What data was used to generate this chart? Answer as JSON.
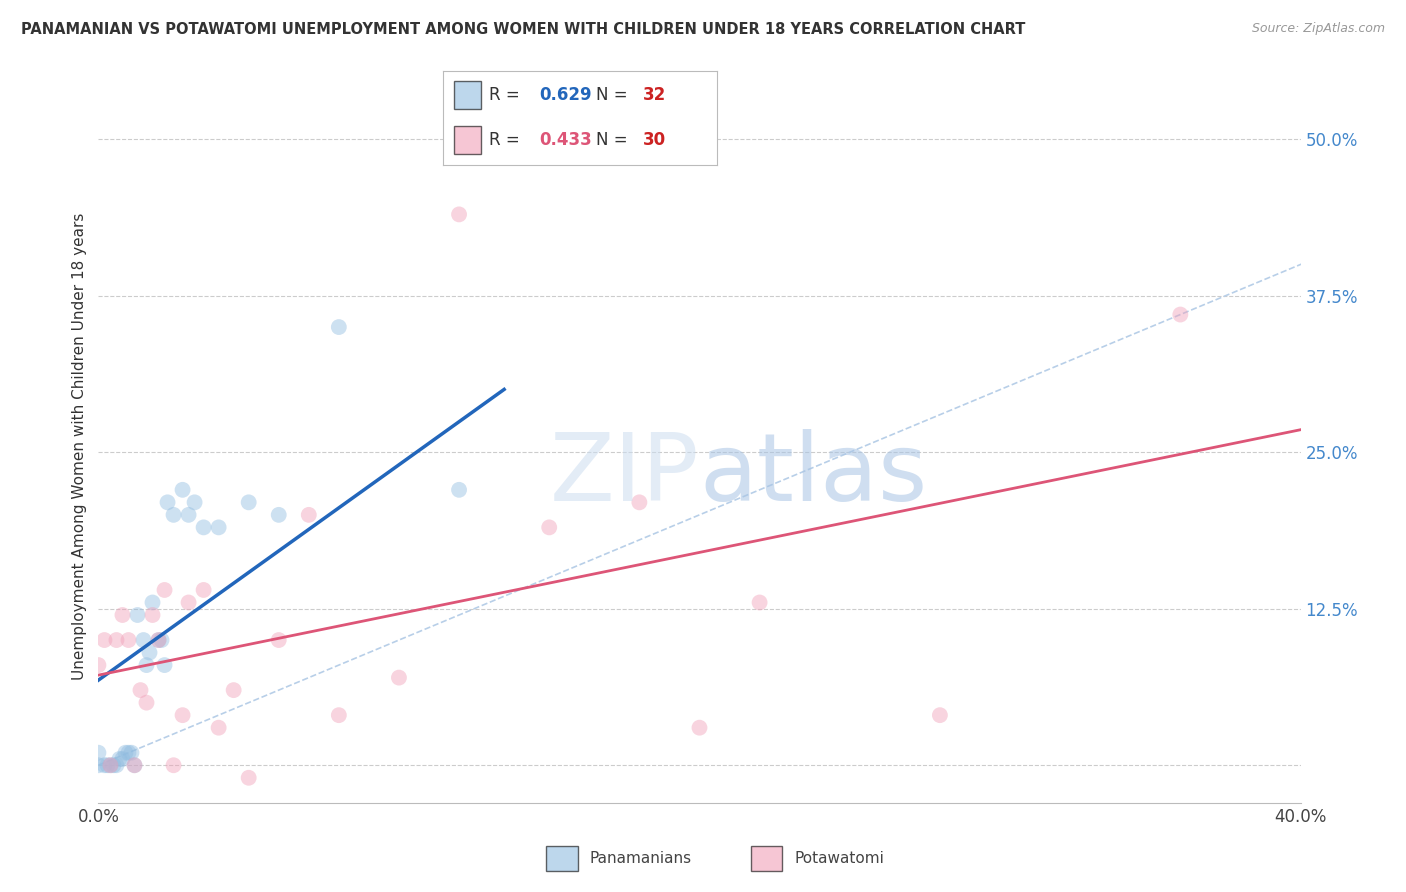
{
  "title": "PANAMANIAN VS POTAWATOMI UNEMPLOYMENT AMONG WOMEN WITH CHILDREN UNDER 18 YEARS CORRELATION CHART",
  "source": "Source: ZipAtlas.com",
  "ylabel": "Unemployment Among Women with Children Under 18 years",
  "xlim": [
    0.0,
    0.4
  ],
  "ylim": [
    -0.03,
    0.54
  ],
  "yticks": [
    0.0,
    0.125,
    0.25,
    0.375,
    0.5
  ],
  "ytick_labels": [
    "",
    "12.5%",
    "25.0%",
    "37.5%",
    "50.0%"
  ],
  "xticks": [
    0.0,
    0.1,
    0.2,
    0.3,
    0.4
  ],
  "xtick_labels": [
    "0.0%",
    "",
    "",
    "",
    "40.0%"
  ],
  "blue_R": 0.629,
  "blue_N": 32,
  "pink_R": 0.433,
  "pink_N": 30,
  "blue_color": "#92bde0",
  "pink_color": "#f0a0b8",
  "blue_line_color": "#2266bb",
  "pink_line_color": "#dd5577",
  "diag_color": "#b8cfe8",
  "legend_label_blue": "Panamanians",
  "legend_label_pink": "Potawatomi",
  "blue_x": [
    0.0,
    0.0,
    0.002,
    0.003,
    0.004,
    0.005,
    0.006,
    0.007,
    0.008,
    0.009,
    0.01,
    0.011,
    0.012,
    0.013,
    0.015,
    0.016,
    0.017,
    0.018,
    0.02,
    0.021,
    0.022,
    0.023,
    0.025,
    0.028,
    0.03,
    0.032,
    0.035,
    0.04,
    0.05,
    0.06,
    0.08,
    0.12
  ],
  "blue_y": [
    0.0,
    0.01,
    0.0,
    0.0,
    0.0,
    0.0,
    0.0,
    0.005,
    0.005,
    0.01,
    0.01,
    0.01,
    0.0,
    0.12,
    0.1,
    0.08,
    0.09,
    0.13,
    0.1,
    0.1,
    0.08,
    0.21,
    0.2,
    0.22,
    0.2,
    0.21,
    0.19,
    0.19,
    0.21,
    0.2,
    0.35,
    0.22
  ],
  "pink_x": [
    0.0,
    0.002,
    0.004,
    0.006,
    0.008,
    0.01,
    0.012,
    0.014,
    0.016,
    0.018,
    0.02,
    0.022,
    0.025,
    0.028,
    0.03,
    0.035,
    0.04,
    0.045,
    0.05,
    0.06,
    0.07,
    0.08,
    0.1,
    0.12,
    0.15,
    0.18,
    0.2,
    0.22,
    0.28,
    0.36
  ],
  "pink_y": [
    0.08,
    0.1,
    0.0,
    0.1,
    0.12,
    0.1,
    0.0,
    0.06,
    0.05,
    0.12,
    0.1,
    0.14,
    0.0,
    0.04,
    0.13,
    0.14,
    0.03,
    0.06,
    -0.01,
    0.1,
    0.2,
    0.04,
    0.07,
    0.44,
    0.19,
    0.21,
    0.03,
    0.13,
    0.04,
    0.36
  ],
  "dot_size": 130,
  "dot_alpha": 0.45,
  "grid_color": "#cccccc"
}
